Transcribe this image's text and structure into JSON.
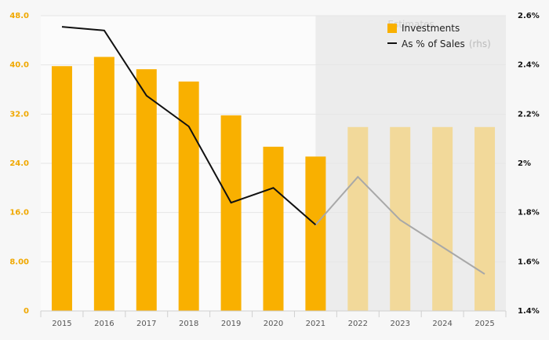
{
  "chart_data": {
    "type": "bar",
    "categories": [
      "2015",
      "2016",
      "2017",
      "2018",
      "2019",
      "2020",
      "2021",
      "2022",
      "2023",
      "2024",
      "2025"
    ],
    "series": [
      {
        "name": "Investments",
        "type": "bar",
        "axis": "left",
        "values": [
          39.8,
          41.3,
          39.3,
          37.3,
          31.8,
          26.7,
          25.1,
          29.9,
          29.9,
          29.9,
          29.9
        ],
        "color": "#f9b000",
        "estimate_color": "#f2d99a"
      },
      {
        "name": "As % of Sales",
        "name_suffix": "(rhs)",
        "type": "line",
        "axis": "right",
        "values": [
          2.555,
          2.54,
          2.275,
          2.15,
          1.84,
          1.9,
          1.75,
          1.945,
          1.77,
          1.66,
          1.55
        ],
        "color": "#111111",
        "estimate_color": "#a8a8a8"
      }
    ],
    "estimates_label": "Estimates",
    "estimates_start": "2021",
    "y_left": {
      "lim": [
        0,
        48
      ],
      "ticks": [
        0,
        8,
        16,
        24,
        32,
        40,
        48
      ],
      "tick_labels": [
        "0",
        "8.00",
        "16.0",
        "24.0",
        "32.0",
        "40.0",
        "48.0"
      ],
      "color": "#f0a800"
    },
    "y_right": {
      "lim": [
        1.4,
        2.6
      ],
      "ticks": [
        1.4,
        1.6,
        1.8,
        2.0,
        2.2,
        2.4,
        2.6
      ],
      "tick_labels": [
        "1.4%",
        "1.6%",
        "1.8%",
        "2%",
        "2.2%",
        "2.4%",
        "2.6%"
      ]
    },
    "legend": {
      "position": "top-right"
    },
    "colors": {
      "background": "#f7f7f7",
      "plot_background": "#fbfbfb",
      "estimate_shade": "#ececec",
      "grid": "#e6e6e6"
    }
  }
}
